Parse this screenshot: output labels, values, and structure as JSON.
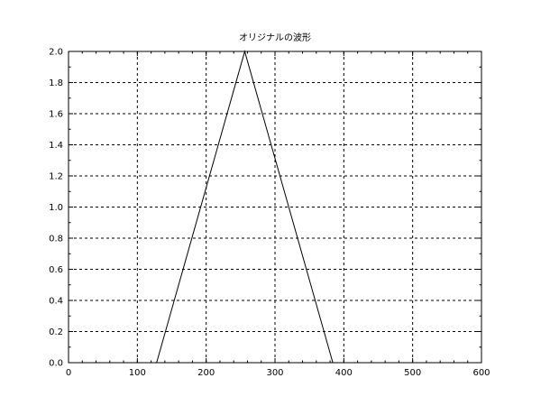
{
  "chart_data": {
    "type": "line",
    "title": "オリジナルの波形",
    "xlabel": "",
    "ylabel": "",
    "xlim": [
      0,
      600
    ],
    "ylim": [
      0,
      2.0
    ],
    "grid": true,
    "x_ticks": [
      "0",
      "100",
      "200",
      "300",
      "400",
      "500",
      "600"
    ],
    "y_ticks": [
      "0.0",
      "0.2",
      "0.4",
      "0.6",
      "0.8",
      "1.0",
      "1.2",
      "1.4",
      "1.6",
      "1.8",
      "2.0"
    ],
    "series": [
      {
        "x": [
          0,
          128,
          256,
          384,
          600
        ],
        "y": [
          0,
          0,
          2.0,
          0,
          0
        ]
      }
    ]
  }
}
